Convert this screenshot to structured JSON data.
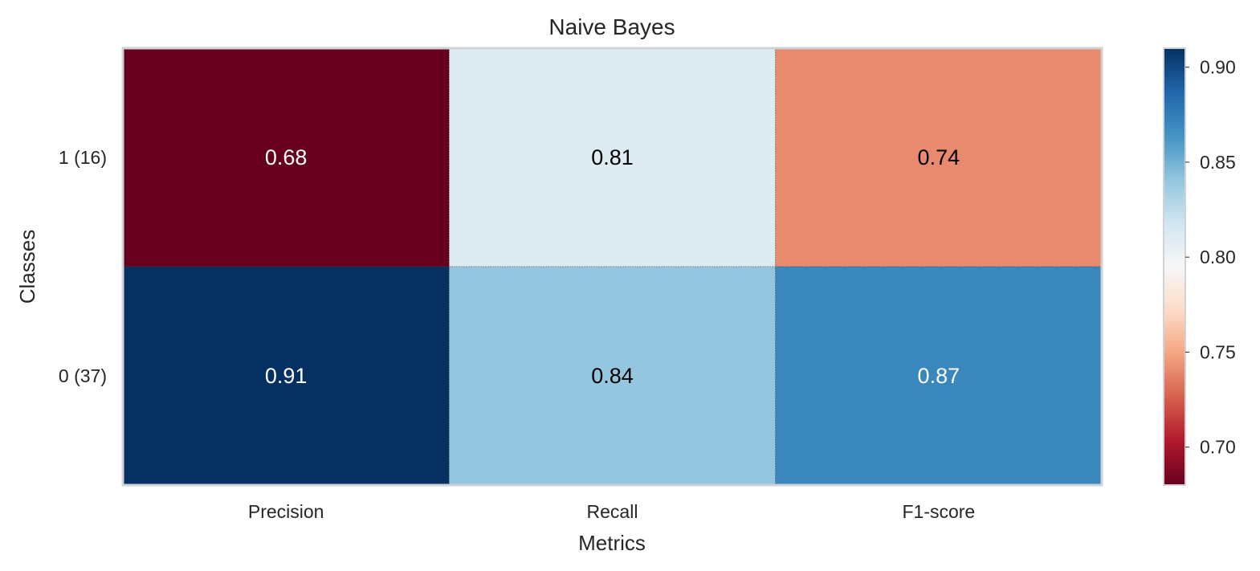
{
  "chart_data": {
    "type": "heatmap",
    "title": "Naive Bayes",
    "xlabel": "Metrics",
    "ylabel": "Classes",
    "columns": [
      "Precision",
      "Recall",
      "F1-score"
    ],
    "rows": [
      "1 (16)",
      "0 (37)"
    ],
    "values": [
      [
        0.68,
        0.81,
        0.74
      ],
      [
        0.91,
        0.84,
        0.87
      ]
    ],
    "value_labels": [
      [
        "0.68",
        "0.81",
        "0.74"
      ],
      [
        "0.91",
        "0.84",
        "0.87"
      ]
    ],
    "colorbar": {
      "colormap": "RdBu",
      "range": [
        0.68,
        0.91
      ],
      "ticks": [
        0.7,
        0.75,
        0.8,
        0.85,
        0.9
      ],
      "tick_labels": [
        "0.70",
        "0.75",
        "0.80",
        "0.85",
        "0.90"
      ]
    },
    "grid": false,
    "legend": "colorbar-right"
  }
}
